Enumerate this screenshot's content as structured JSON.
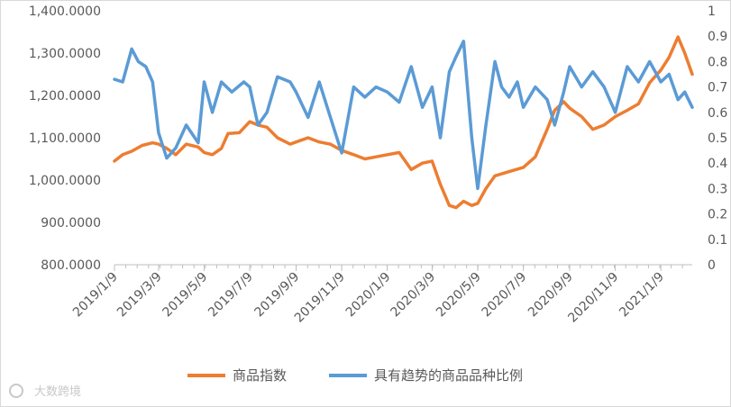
{
  "chart_data": {
    "type": "line",
    "title": "",
    "xlabel": "",
    "ylabel": "",
    "x_ticks": [
      "2019/1/9",
      "2019/3/9",
      "2019/5/9",
      "2019/7/9",
      "2019/9/9",
      "2019/11/9",
      "2020/1/9",
      "2020/3/9",
      "2020/5/9",
      "2020/7/9",
      "2020/9/9",
      "2020/11/9",
      "2021/1/9"
    ],
    "y_left": {
      "min": 800,
      "max": 1400,
      "step": 100,
      "tick_labels": [
        "800.0000",
        "900.0000",
        "1,000.0000",
        "1,100.0000",
        "1,200.0000",
        "1,300.0000",
        "1,400.0000"
      ]
    },
    "y_right": {
      "min": 0,
      "max": 1,
      "step": 0.1,
      "tick_labels": [
        "0",
        "0.1",
        "0.2",
        "0.3",
        "0.4",
        "0.5",
        "0.6",
        "0.7",
        "0.8",
        "0.9",
        "1"
      ]
    },
    "legend_position": "bottom",
    "grid": false,
    "series": [
      {
        "name": "商品指数",
        "axis": "left",
        "color": "#ED7D31",
        "points": [
          [
            "2019/1/9",
            1045
          ],
          [
            "2019/1/20",
            1060
          ],
          [
            "2019/2/1",
            1068
          ],
          [
            "2019/2/15",
            1082
          ],
          [
            "2019/3/1",
            1088
          ],
          [
            "2019/3/9",
            1085
          ],
          [
            "2019/3/20",
            1075
          ],
          [
            "2019/4/1",
            1060
          ],
          [
            "2019/4/15",
            1085
          ],
          [
            "2019/5/1",
            1078
          ],
          [
            "2019/5/9",
            1065
          ],
          [
            "2019/5/20",
            1060
          ],
          [
            "2019/6/1",
            1075
          ],
          [
            "2019/6/10",
            1110
          ],
          [
            "2019/6/25",
            1112
          ],
          [
            "2019/7/9",
            1138
          ],
          [
            "2019/7/20",
            1130
          ],
          [
            "2019/8/1",
            1125
          ],
          [
            "2019/8/15",
            1100
          ],
          [
            "2019/9/1",
            1085
          ],
          [
            "2019/9/9",
            1090
          ],
          [
            "2019/9/25",
            1100
          ],
          [
            "2019/10/10",
            1090
          ],
          [
            "2019/10/25",
            1085
          ],
          [
            "2019/11/9",
            1070
          ],
          [
            "2019/11/25",
            1060
          ],
          [
            "2019/12/10",
            1050
          ],
          [
            "2019/12/25",
            1055
          ],
          [
            "2020/1/9",
            1060
          ],
          [
            "2020/1/25",
            1065
          ],
          [
            "2020/2/10",
            1025
          ],
          [
            "2020/2/25",
            1040
          ],
          [
            "2020/3/9",
            1045
          ],
          [
            "2020/3/20",
            990
          ],
          [
            "2020/4/1",
            940
          ],
          [
            "2020/4/10",
            935
          ],
          [
            "2020/4/20",
            950
          ],
          [
            "2020/5/1",
            940
          ],
          [
            "2020/5/9",
            945
          ],
          [
            "2020/5/20",
            980
          ],
          [
            "2020/6/1",
            1010
          ],
          [
            "2020/6/20",
            1020
          ],
          [
            "2020/7/9",
            1030
          ],
          [
            "2020/7/25",
            1055
          ],
          [
            "2020/8/10",
            1120
          ],
          [
            "2020/8/20",
            1165
          ],
          [
            "2020/9/1",
            1185
          ],
          [
            "2020/9/9",
            1170
          ],
          [
            "2020/9/25",
            1150
          ],
          [
            "2020/10/10",
            1120
          ],
          [
            "2020/10/25",
            1130
          ],
          [
            "2020/11/9",
            1150
          ],
          [
            "2020/11/25",
            1165
          ],
          [
            "2020/12/10",
            1180
          ],
          [
            "2020/12/25",
            1230
          ],
          [
            "2021/1/9",
            1260
          ],
          [
            "2021/1/20",
            1290
          ],
          [
            "2021/2/1",
            1338
          ],
          [
            "2021/2/10",
            1300
          ],
          [
            "2021/2/20",
            1250
          ]
        ]
      },
      {
        "name": "具有趋势的商品品种比例",
        "axis": "right",
        "color": "#5B9BD5",
        "points": [
          [
            "2019/1/9",
            0.73
          ],
          [
            "2019/1/20",
            0.72
          ],
          [
            "2019/2/1",
            0.85
          ],
          [
            "2019/2/10",
            0.8
          ],
          [
            "2019/2/20",
            0.78
          ],
          [
            "2019/3/1",
            0.72
          ],
          [
            "2019/3/9",
            0.52
          ],
          [
            "2019/3/20",
            0.42
          ],
          [
            "2019/4/1",
            0.46
          ],
          [
            "2019/4/15",
            0.55
          ],
          [
            "2019/5/1",
            0.48
          ],
          [
            "2019/5/9",
            0.72
          ],
          [
            "2019/5/20",
            0.6
          ],
          [
            "2019/6/1",
            0.72
          ],
          [
            "2019/6/15",
            0.68
          ],
          [
            "2019/7/1",
            0.72
          ],
          [
            "2019/7/9",
            0.7
          ],
          [
            "2019/7/20",
            0.55
          ],
          [
            "2019/8/1",
            0.6
          ],
          [
            "2019/8/15",
            0.74
          ],
          [
            "2019/9/1",
            0.72
          ],
          [
            "2019/9/9",
            0.68
          ],
          [
            "2019/9/25",
            0.58
          ],
          [
            "2019/10/10",
            0.72
          ],
          [
            "2019/10/25",
            0.58
          ],
          [
            "2019/11/9",
            0.44
          ],
          [
            "2019/11/25",
            0.7
          ],
          [
            "2019/12/10",
            0.66
          ],
          [
            "2019/12/25",
            0.7
          ],
          [
            "2020/1/9",
            0.68
          ],
          [
            "2020/1/25",
            0.64
          ],
          [
            "2020/2/10",
            0.78
          ],
          [
            "2020/2/25",
            0.62
          ],
          [
            "2020/3/9",
            0.7
          ],
          [
            "2020/3/20",
            0.5
          ],
          [
            "2020/4/1",
            0.76
          ],
          [
            "2020/4/10",
            0.82
          ],
          [
            "2020/4/20",
            0.88
          ],
          [
            "2020/5/1",
            0.5
          ],
          [
            "2020/5/9",
            0.3
          ],
          [
            "2020/5/20",
            0.55
          ],
          [
            "2020/6/1",
            0.8
          ],
          [
            "2020/6/10",
            0.7
          ],
          [
            "2020/6/20",
            0.66
          ],
          [
            "2020/7/1",
            0.72
          ],
          [
            "2020/7/9",
            0.62
          ],
          [
            "2020/7/25",
            0.7
          ],
          [
            "2020/8/10",
            0.65
          ],
          [
            "2020/8/20",
            0.55
          ],
          [
            "2020/9/1",
            0.68
          ],
          [
            "2020/9/9",
            0.78
          ],
          [
            "2020/9/25",
            0.7
          ],
          [
            "2020/10/10",
            0.76
          ],
          [
            "2020/10/25",
            0.7
          ],
          [
            "2020/11/9",
            0.6
          ],
          [
            "2020/11/25",
            0.78
          ],
          [
            "2020/12/10",
            0.72
          ],
          [
            "2020/12/25",
            0.8
          ],
          [
            "2021/1/9",
            0.72
          ],
          [
            "2021/1/20",
            0.75
          ],
          [
            "2021/2/1",
            0.65
          ],
          [
            "2021/2/10",
            0.68
          ],
          [
            "2021/2/20",
            0.62
          ]
        ]
      }
    ]
  },
  "watermark": {
    "text": "大数跨境",
    "icon": "camera-logo-icon"
  }
}
